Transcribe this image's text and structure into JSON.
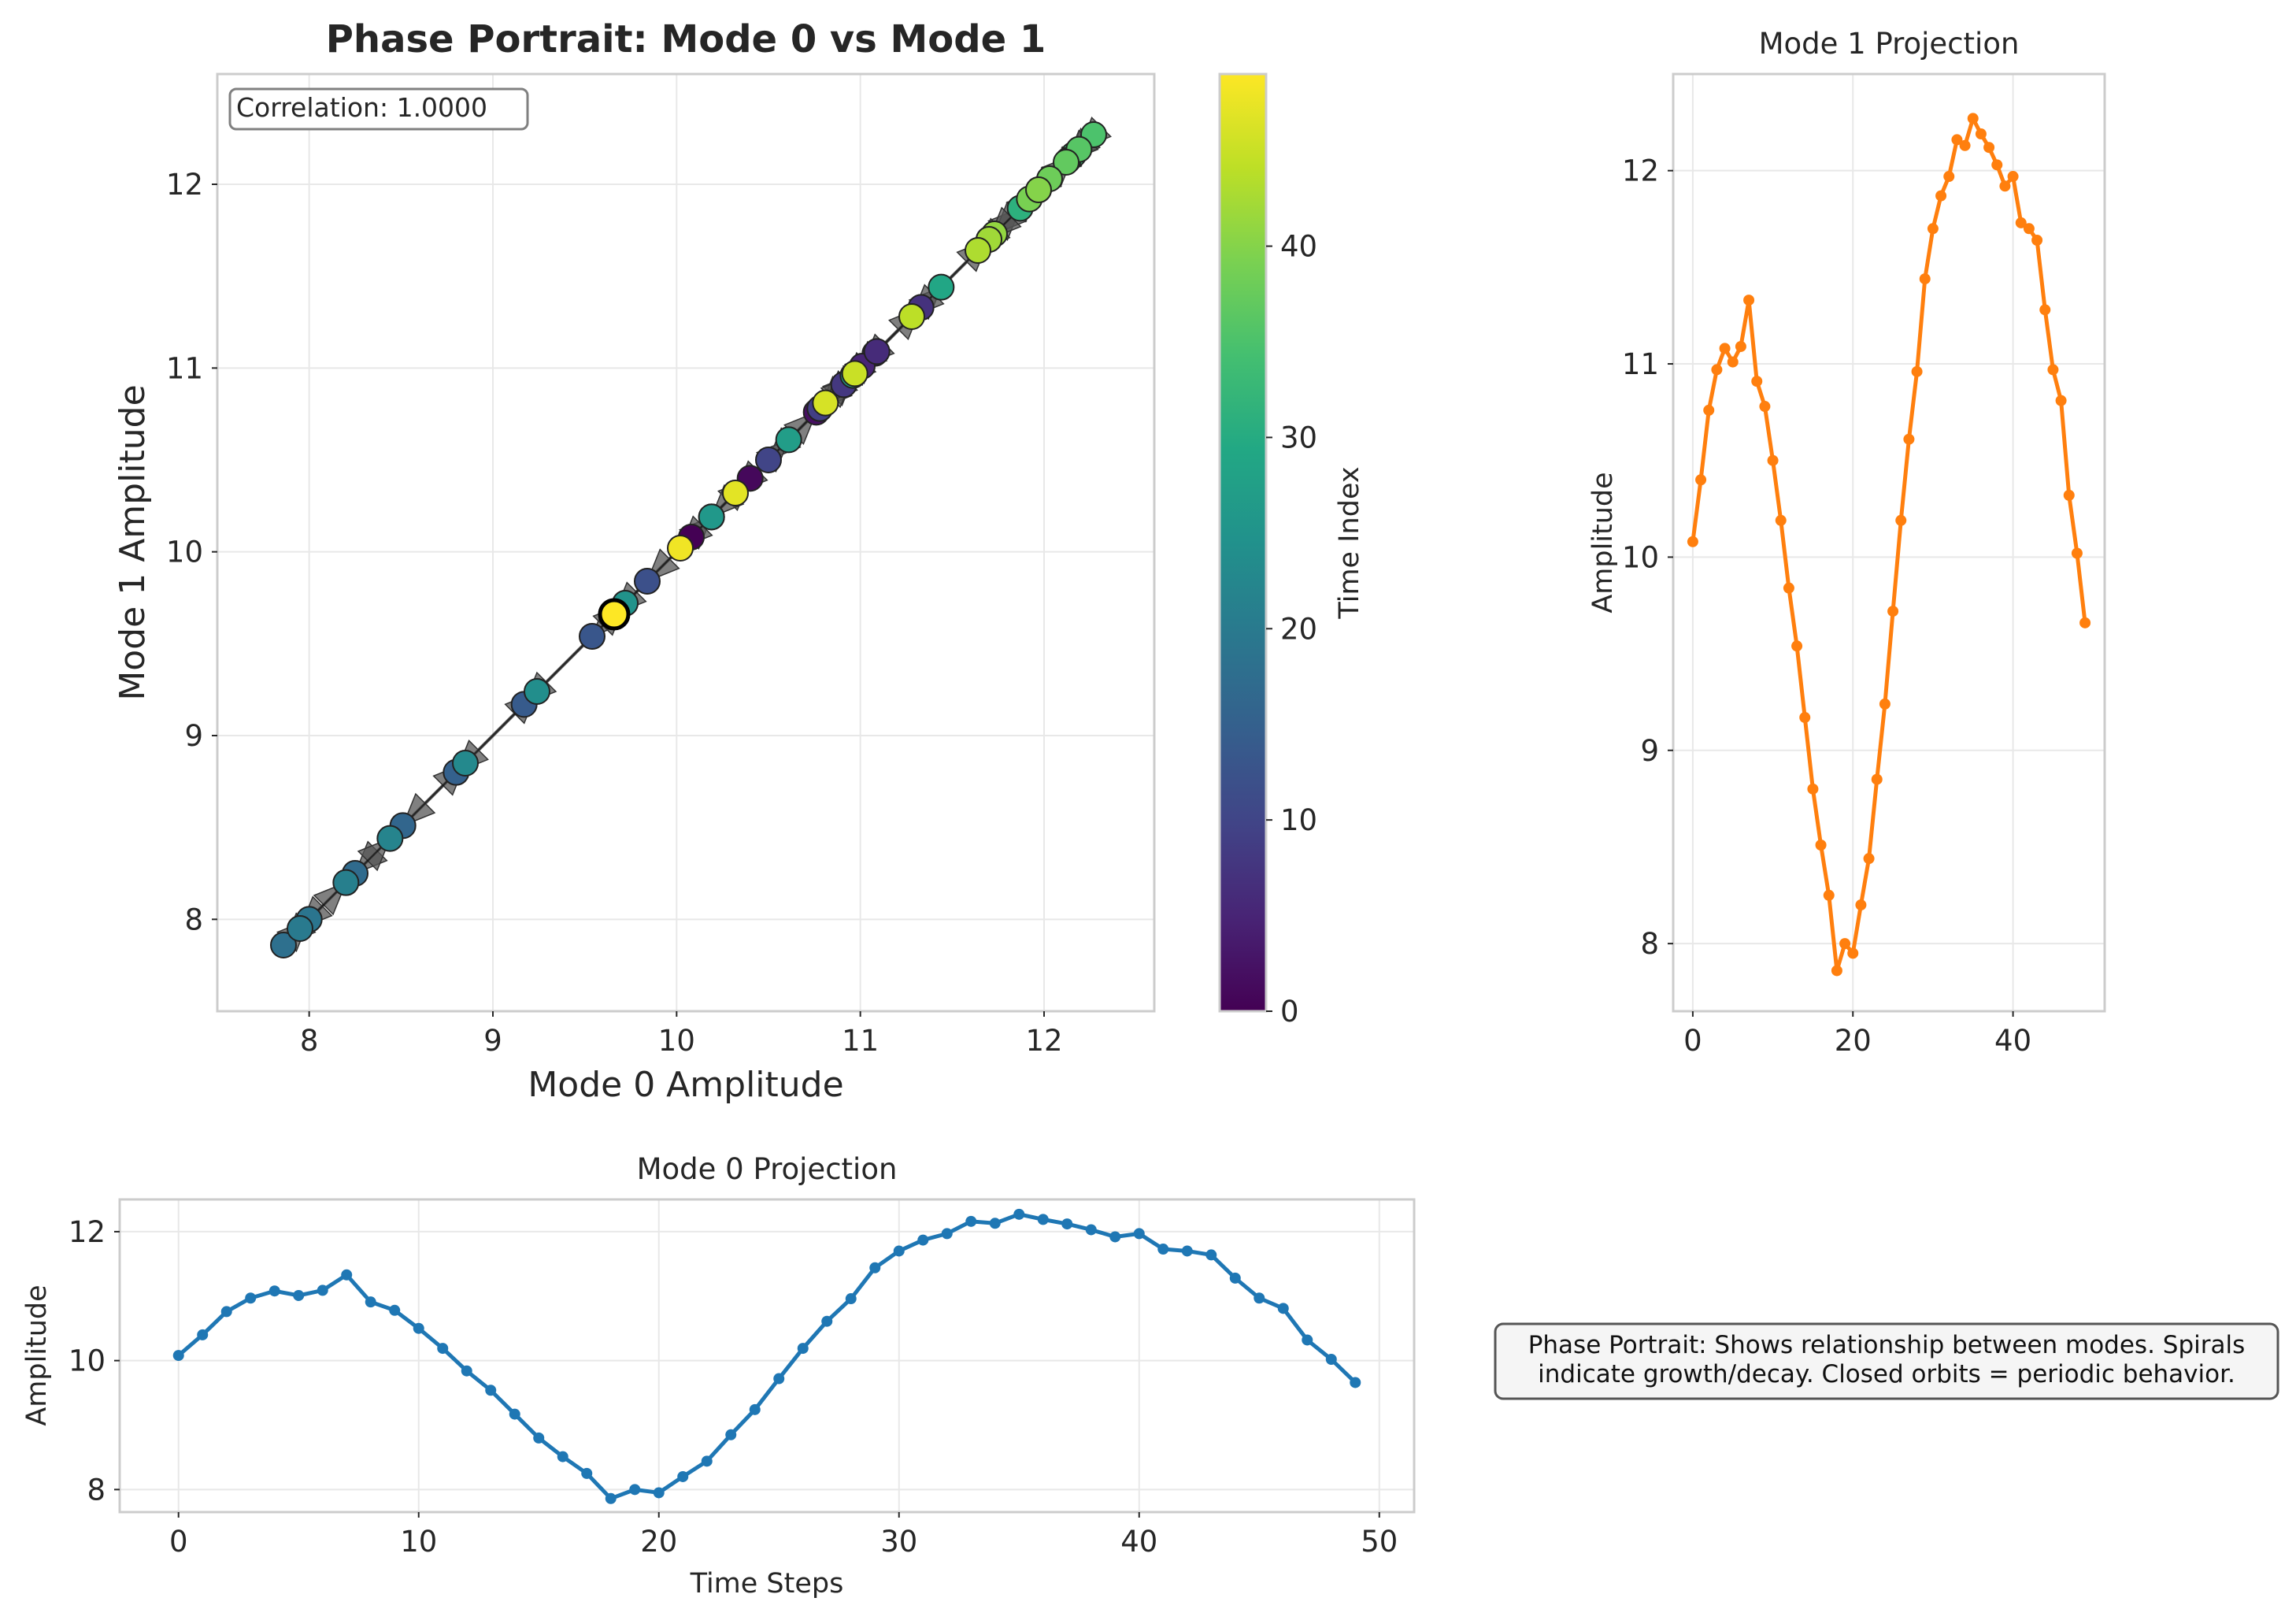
{
  "chart_data": [
    {
      "id": "phase",
      "type": "scatter",
      "title": "Phase Portrait: Mode 0 vs Mode 1",
      "xlabel": "Mode 0 Amplitude",
      "ylabel": "Mode 1 Amplitude",
      "xlim": [
        7.5,
        12.6
      ],
      "ylim": [
        7.5,
        12.6
      ],
      "xticks": [
        8,
        9,
        10,
        11,
        12
      ],
      "yticks": [
        8,
        9,
        10,
        11,
        12
      ],
      "annotation": "Correlation: 1.0000",
      "colormap": "viridis",
      "colorbar": {
        "label": "Time Index",
        "range": [
          0,
          49
        ],
        "ticks": [
          0,
          10,
          20,
          30,
          40
        ]
      },
      "arrows": true,
      "grid": true,
      "x": [
        10.08,
        10.4,
        10.76,
        10.97,
        11.08,
        11.01,
        11.09,
        11.33,
        10.91,
        10.78,
        10.5,
        10.19,
        9.84,
        9.54,
        9.17,
        8.8,
        8.51,
        8.25,
        7.86,
        8.0,
        7.95,
        8.2,
        8.44,
        8.85,
        9.24,
        9.72,
        10.19,
        10.61,
        10.96,
        11.44,
        11.7,
        11.87,
        11.97,
        12.16,
        12.13,
        12.27,
        12.19,
        12.12,
        12.03,
        11.92,
        11.97,
        11.73,
        11.7,
        11.64,
        11.28,
        10.97,
        10.81,
        10.32,
        10.02,
        9.66
      ],
      "y": [
        10.08,
        10.4,
        10.76,
        10.97,
        11.08,
        11.01,
        11.09,
        11.33,
        10.91,
        10.78,
        10.5,
        10.19,
        9.84,
        9.54,
        9.17,
        8.8,
        8.51,
        8.25,
        7.86,
        8.0,
        7.95,
        8.2,
        8.44,
        8.85,
        9.24,
        9.72,
        10.19,
        10.61,
        10.96,
        11.44,
        11.7,
        11.87,
        11.97,
        12.16,
        12.13,
        12.27,
        12.19,
        12.12,
        12.03,
        11.92,
        11.97,
        11.73,
        11.7,
        11.64,
        11.28,
        10.97,
        10.81,
        10.32,
        10.02,
        9.66
      ]
    },
    {
      "id": "mode1",
      "type": "line",
      "title": "Mode 1 Projection",
      "xlabel": "",
      "ylabel": "Amplitude",
      "color": "#ff7f0e",
      "xlim": [
        -2.45,
        51.45
      ],
      "ylim": [
        7.65,
        12.5
      ],
      "xticks": [
        0,
        20,
        40
      ],
      "yticks": [
        8,
        9,
        10,
        11,
        12
      ],
      "grid": true,
      "x": [
        0,
        1,
        2,
        3,
        4,
        5,
        6,
        7,
        8,
        9,
        10,
        11,
        12,
        13,
        14,
        15,
        16,
        17,
        18,
        19,
        20,
        21,
        22,
        23,
        24,
        25,
        26,
        27,
        28,
        29,
        30,
        31,
        32,
        33,
        34,
        35,
        36,
        37,
        38,
        39,
        40,
        41,
        42,
        43,
        44,
        45,
        46,
        47,
        48,
        49
      ],
      "values": [
        10.08,
        10.4,
        10.76,
        10.97,
        11.08,
        11.01,
        11.09,
        11.33,
        10.91,
        10.78,
        10.5,
        10.19,
        9.84,
        9.54,
        9.17,
        8.8,
        8.51,
        8.25,
        7.86,
        8.0,
        7.95,
        8.2,
        8.44,
        8.85,
        9.24,
        9.72,
        10.19,
        10.61,
        10.96,
        11.44,
        11.7,
        11.87,
        11.97,
        12.16,
        12.13,
        12.27,
        12.19,
        12.12,
        12.03,
        11.92,
        11.97,
        11.73,
        11.7,
        11.64,
        11.28,
        10.97,
        10.81,
        10.32,
        10.02,
        9.66
      ]
    },
    {
      "id": "mode0",
      "type": "line",
      "title": "Mode 0 Projection",
      "xlabel": "Time Steps",
      "ylabel": "Amplitude",
      "color": "#1f77b4",
      "xlim": [
        -2.45,
        51.45
      ],
      "ylim": [
        7.65,
        12.5
      ],
      "xticks": [
        0,
        10,
        20,
        30,
        40,
        50
      ],
      "yticks": [
        8,
        10,
        12
      ],
      "grid": true,
      "x": [
        0,
        1,
        2,
        3,
        4,
        5,
        6,
        7,
        8,
        9,
        10,
        11,
        12,
        13,
        14,
        15,
        16,
        17,
        18,
        19,
        20,
        21,
        22,
        23,
        24,
        25,
        26,
        27,
        28,
        29,
        30,
        31,
        32,
        33,
        34,
        35,
        36,
        37,
        38,
        39,
        40,
        41,
        42,
        43,
        44,
        45,
        46,
        47,
        48,
        49
      ],
      "values": [
        10.08,
        10.4,
        10.76,
        10.97,
        11.08,
        11.01,
        11.09,
        11.33,
        10.91,
        10.78,
        10.5,
        10.19,
        9.84,
        9.54,
        9.17,
        8.8,
        8.51,
        8.25,
        7.86,
        8.0,
        7.95,
        8.2,
        8.44,
        8.85,
        9.24,
        9.72,
        10.19,
        10.61,
        10.96,
        11.44,
        11.7,
        11.87,
        11.97,
        12.16,
        12.13,
        12.27,
        12.19,
        12.12,
        12.03,
        11.92,
        11.97,
        11.73,
        11.7,
        11.64,
        11.28,
        10.97,
        10.81,
        10.32,
        10.02,
        9.66
      ]
    }
  ],
  "note": {
    "line1": "Phase Portrait: Shows relationship between modes. Spirals",
    "line2": "indicate growth/decay. Closed orbits = periodic behavior."
  }
}
